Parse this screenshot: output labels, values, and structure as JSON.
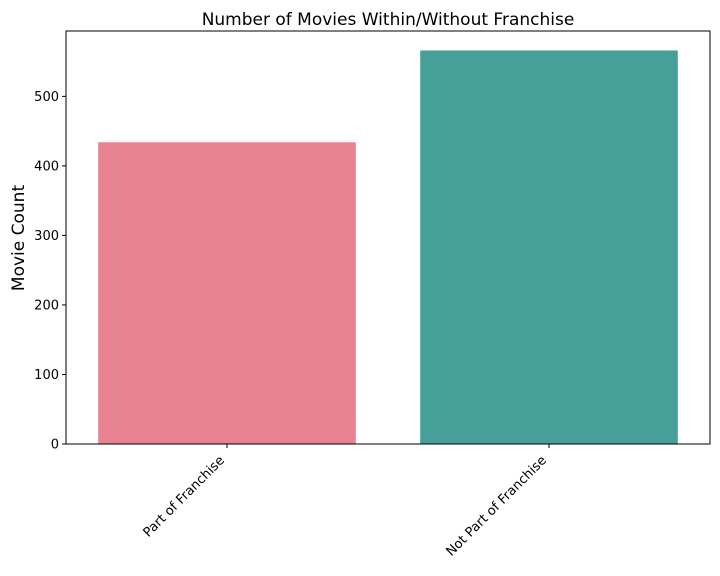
{
  "chart_data": {
    "type": "bar",
    "title": "Number of Movies Within/Without Franchise",
    "xlabel": "",
    "ylabel": "Movie Count",
    "categories": [
      "Part of Franchise",
      "Not Part of Franchise"
    ],
    "values": [
      434,
      566
    ],
    "colors": [
      "#e78293",
      "#469f98"
    ],
    "ylim": [
      0,
      594
    ],
    "yticks": [
      0,
      100,
      200,
      300,
      400,
      500
    ],
    "grid": false,
    "xtick_rotation": -45
  }
}
